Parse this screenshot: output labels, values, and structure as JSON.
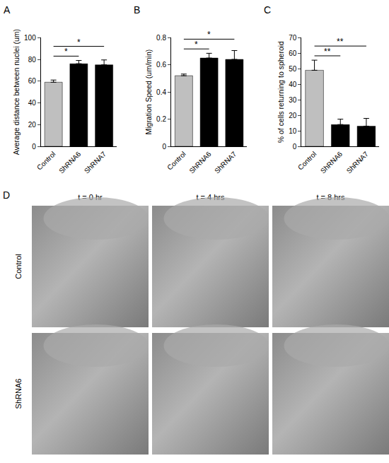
{
  "chart_data": [
    {
      "panel": "A",
      "type": "bar",
      "categories": [
        "Control",
        "ShRNA6",
        "ShRNA7"
      ],
      "values": [
        59,
        76,
        75
      ],
      "errors": [
        2,
        3,
        4.5
      ],
      "colors": [
        "#bfbfbf",
        "#000000",
        "#000000"
      ],
      "y_label": "Average distance between nuclei (um)",
      "ylim": [
        0,
        100
      ],
      "yticks": [
        0,
        20,
        40,
        60,
        80,
        100
      ],
      "significance": [
        {
          "from": "Control",
          "to": "ShRNA6",
          "label": "*"
        },
        {
          "from": "Control",
          "to": "ShRNA7",
          "label": "*"
        }
      ]
    },
    {
      "panel": "B",
      "type": "bar",
      "categories": [
        "Control",
        "ShRNA6",
        "ShRNA7"
      ],
      "values": [
        0.52,
        0.65,
        0.64
      ],
      "errors": [
        0.012,
        0.035,
        0.065
      ],
      "colors": [
        "#bfbfbf",
        "#000000",
        "#000000"
      ],
      "y_label": "Migration Speed (um/min)",
      "ylim": [
        0,
        0.8
      ],
      "yticks": [
        0,
        0.2,
        0.4,
        0.6,
        0.8
      ],
      "significance": [
        {
          "from": "Control",
          "to": "ShRNA6",
          "label": "*"
        },
        {
          "from": "Control",
          "to": "ShRNA7",
          "label": "*"
        }
      ]
    },
    {
      "panel": "C",
      "type": "bar",
      "categories": [
        "Control",
        "ShRNA6",
        "ShRNA7"
      ],
      "values": [
        49,
        14,
        13
      ],
      "errors": [
        6.5,
        3.5,
        5
      ],
      "colors": [
        "#bfbfbf",
        "#000000",
        "#000000"
      ],
      "y_label": "% of cells returning to spheroid",
      "ylim": [
        0,
        70
      ],
      "yticks": [
        0,
        10,
        20,
        30,
        40,
        50,
        60,
        70
      ],
      "significance": [
        {
          "from": "Control",
          "to": "ShRNA6",
          "label": "**"
        },
        {
          "from": "Control",
          "to": "ShRNA7",
          "label": "**"
        }
      ]
    }
  ],
  "image_panel": {
    "panel": "D",
    "columns": [
      "t = 0 hr",
      "t = 4 hrs",
      "t = 8 hrs"
    ],
    "rows": [
      "Control",
      "ShRNA6"
    ]
  }
}
